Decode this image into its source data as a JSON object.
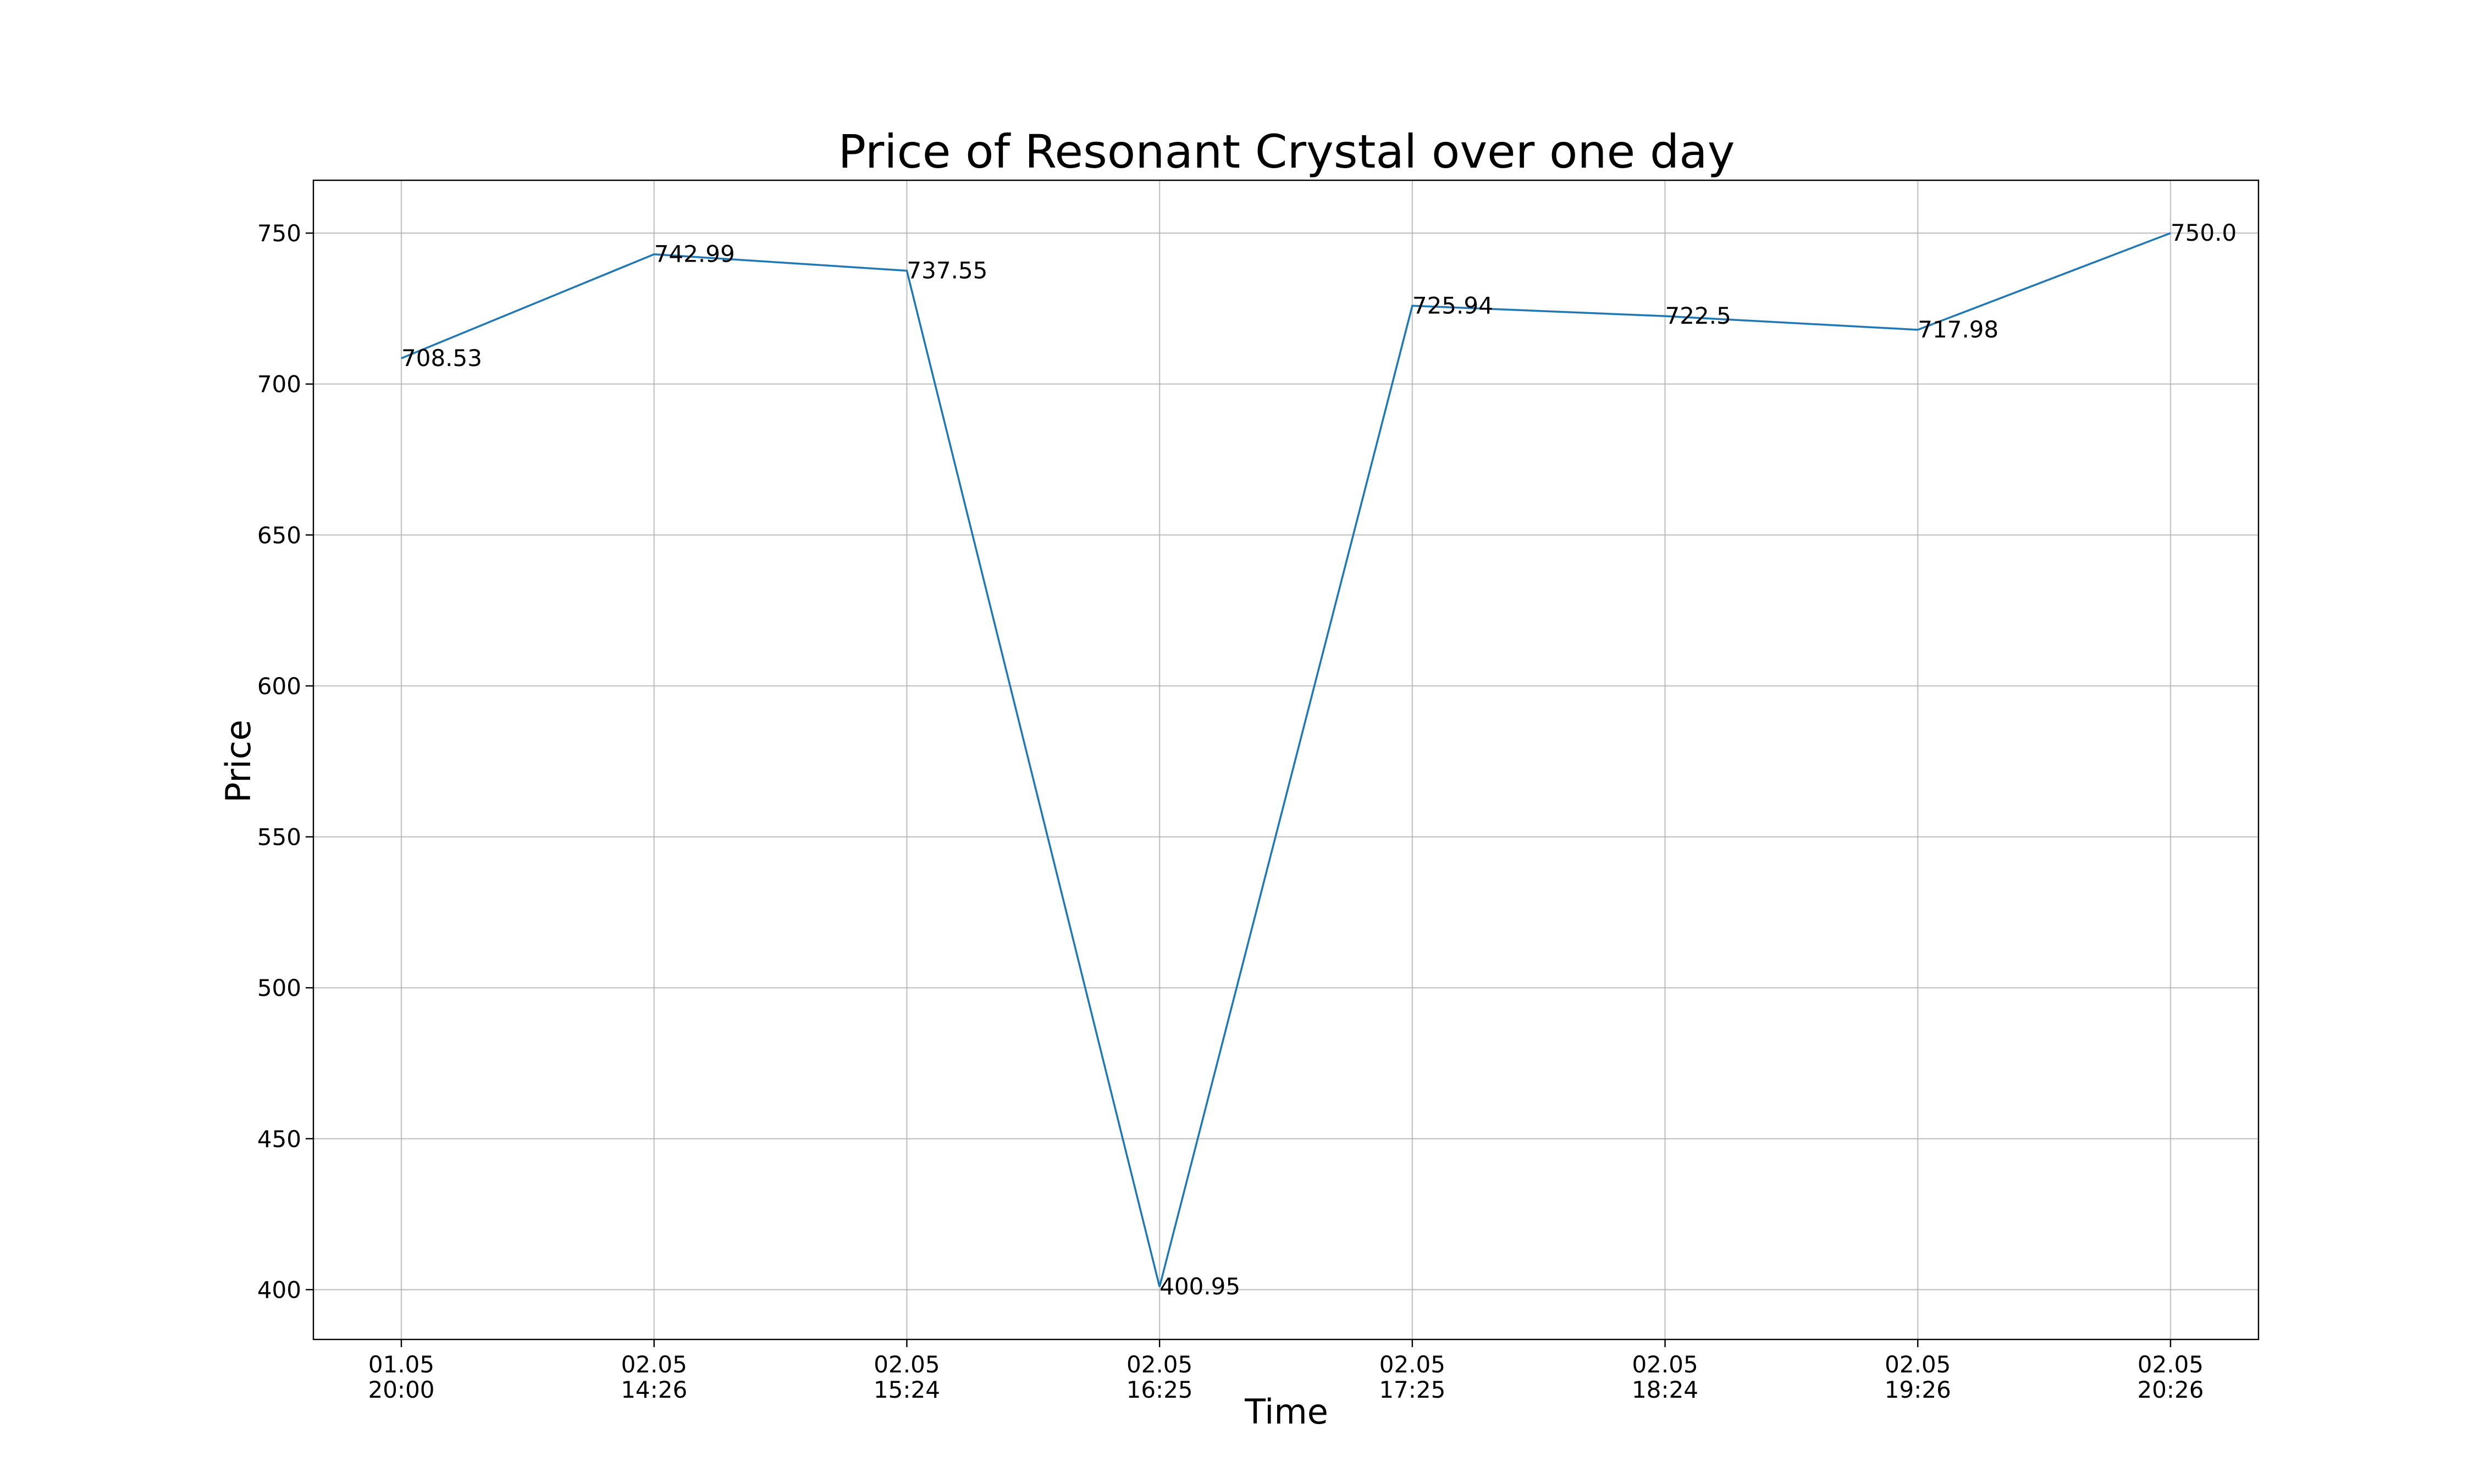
{
  "chart_data": {
    "type": "line",
    "title": "Price of Resonant Crystal over one day",
    "xlabel": "Time",
    "ylabel": "Price",
    "categories": [
      [
        "01.05",
        "20:00"
      ],
      [
        "02.05",
        "14:26"
      ],
      [
        "02.05",
        "15:24"
      ],
      [
        "02.05",
        "16:25"
      ],
      [
        "02.05",
        "17:25"
      ],
      [
        "02.05",
        "18:24"
      ],
      [
        "02.05",
        "19:26"
      ],
      [
        "02.05",
        "20:26"
      ]
    ],
    "values": [
      708.53,
      742.99,
      737.55,
      400.95,
      725.94,
      722.5,
      717.98,
      750.0
    ],
    "data_labels": [
      "708.53",
      "742.99",
      "737.55",
      "400.95",
      "725.94",
      "722.5",
      "717.98",
      "750.0"
    ],
    "ylim": [
      383.5,
      767.5
    ],
    "yticks": [
      400,
      450,
      500,
      550,
      600,
      650,
      700,
      750
    ],
    "ytick_labels": [
      "400",
      "450",
      "500",
      "550",
      "600",
      "650",
      "700",
      "750"
    ],
    "grid": true,
    "legend": "none",
    "line_color": "#1f77b4"
  }
}
